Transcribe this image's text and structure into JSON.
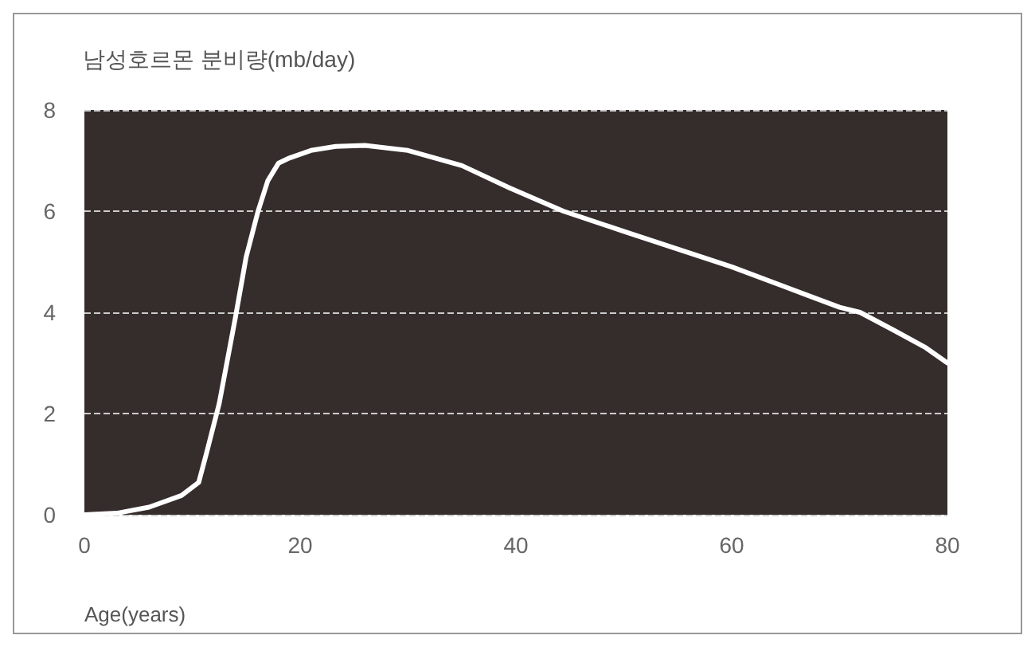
{
  "chart_data": {
    "type": "line",
    "title": "남성호르몬 분비량(mb/day)",
    "xlabel": "Age(years)",
    "x": [
      0,
      3,
      6,
      9,
      10.6,
      11.3,
      12.5,
      14,
      15,
      16.1,
      17,
      18,
      19,
      21,
      23.3,
      26,
      30,
      35,
      39.4,
      44.4,
      50,
      55,
      60,
      65,
      70,
      71.9,
      75,
      78,
      80
    ],
    "series": [
      {
        "color": "#ffffff",
        "values": [
          0,
          0.03,
          0.15,
          0.38,
          0.64,
          1.2,
          2.2,
          3.9,
          5.1,
          6,
          6.6,
          6.95,
          7.05,
          7.2,
          7.28,
          7.3,
          7.2,
          6.9,
          6.46,
          6,
          5.6,
          5.25,
          4.9,
          4.5,
          4.1,
          4,
          3.65,
          3.3,
          3
        ]
      }
    ],
    "xlim": [
      0,
      80
    ],
    "xticks": [
      0,
      20,
      40,
      60,
      80
    ],
    "ylim": [
      0,
      8
    ],
    "yticks": [
      0,
      2,
      4,
      6,
      8
    ],
    "grid": "y",
    "line_style": "solid",
    "marker": "none"
  }
}
